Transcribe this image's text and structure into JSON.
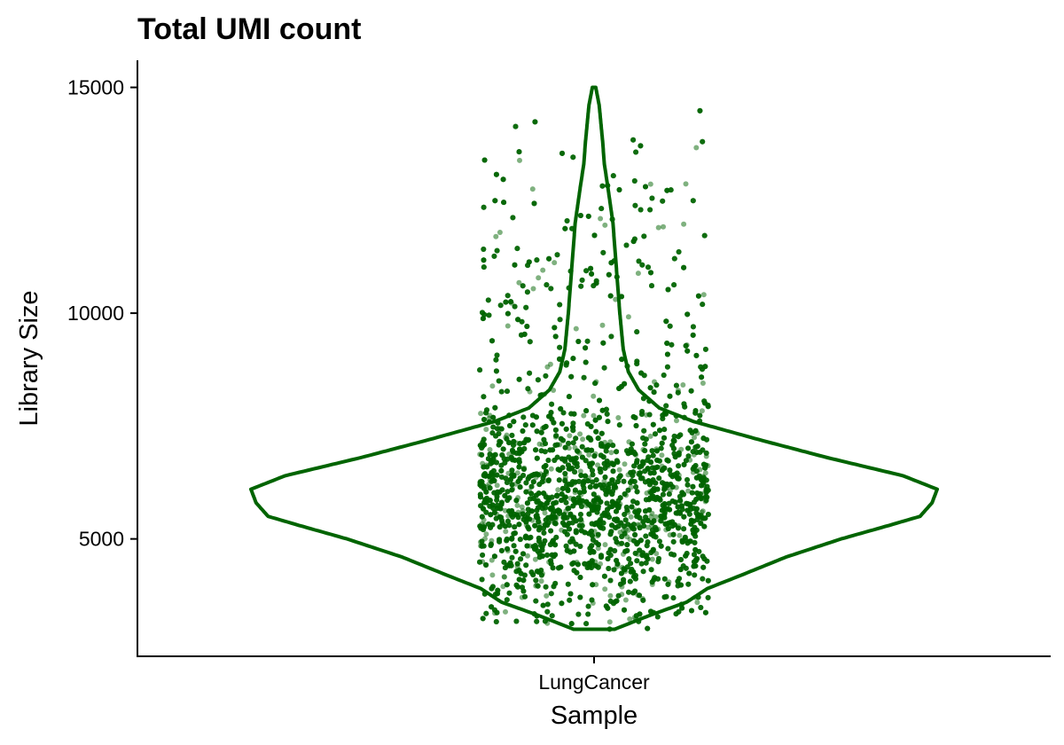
{
  "chart_data": {
    "type": "violin",
    "title": "Total UMI count",
    "xlabel": "Sample",
    "ylabel": "Library Size",
    "categories": [
      "LungCancer"
    ],
    "ylim": [
      2400,
      15600
    ],
    "yticks": [
      5000,
      10000,
      15000
    ],
    "ytick_labels": [
      "5000",
      "10000",
      "15000"
    ],
    "grid": false,
    "legend": "none",
    "color": "#006400",
    "point_alpha": 0.5,
    "distribution": {
      "min": 3000,
      "max": 15000,
      "mode": 6100,
      "n_points_approx": 6000
    },
    "violin_profile": [
      {
        "y": 3000,
        "w": 0.06
      },
      {
        "y": 3300,
        "w": 0.16
      },
      {
        "y": 3600,
        "w": 0.27
      },
      {
        "y": 3900,
        "w": 0.33
      },
      {
        "y": 4200,
        "w": 0.43
      },
      {
        "y": 4600,
        "w": 0.56
      },
      {
        "y": 5000,
        "w": 0.72
      },
      {
        "y": 5300,
        "w": 0.86
      },
      {
        "y": 5500,
        "w": 0.95
      },
      {
        "y": 5800,
        "w": 0.985
      },
      {
        "y": 6100,
        "w": 1.0
      },
      {
        "y": 6400,
        "w": 0.9
      },
      {
        "y": 6800,
        "w": 0.68
      },
      {
        "y": 7200,
        "w": 0.48
      },
      {
        "y": 7600,
        "w": 0.29
      },
      {
        "y": 7900,
        "w": 0.19
      },
      {
        "y": 8300,
        "w": 0.13
      },
      {
        "y": 8700,
        "w": 0.1
      },
      {
        "y": 9200,
        "w": 0.085
      },
      {
        "y": 10000,
        "w": 0.075
      },
      {
        "y": 11000,
        "w": 0.065
      },
      {
        "y": 12000,
        "w": 0.055
      },
      {
        "y": 12800,
        "w": 0.04
      },
      {
        "y": 13300,
        "w": 0.03
      },
      {
        "y": 13800,
        "w": 0.025
      },
      {
        "y": 14200,
        "w": 0.02
      },
      {
        "y": 14600,
        "w": 0.015
      },
      {
        "y": 15000,
        "w": 0.005
      }
    ]
  }
}
